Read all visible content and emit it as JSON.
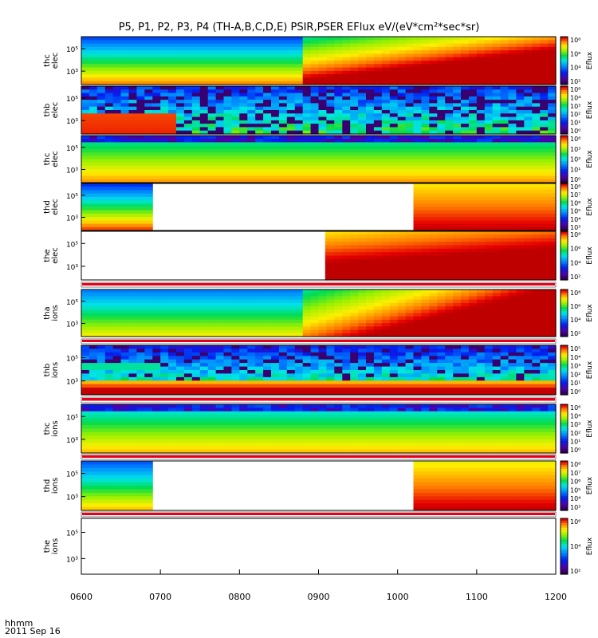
{
  "chart_data": {
    "type": "heatmap",
    "title": "P5, P1, P2, P3, P4 (TH-A,B,C,D,E) PSIR,PSER EFlux eV/(eV*cm²*sec*sr)",
    "x_axis": {
      "ticks": [
        "0600",
        "0700",
        "0800",
        "0900",
        "1000",
        "1100",
        "1200"
      ],
      "range": [
        "0600",
        "1200"
      ]
    },
    "footer": {
      "label": "hhmm",
      "date": "2011 Sep 16"
    },
    "colorbar_label": "Eflux",
    "panels": [
      {
        "ylabel": [
          "thc",
          "elec"
        ],
        "yticks": [
          "10⁵",
          "10³"
        ],
        "cbar": [
          "10⁸",
          "10⁶",
          "10⁴",
          "10²"
        ],
        "kind": "full_jump",
        "jump": "0851"
      },
      {
        "ylabel": [
          "thb",
          "elec"
        ],
        "yticks": [
          "10⁵",
          "10³"
        ],
        "cbar": [
          "10⁸",
          "10⁴",
          "10³",
          "10²",
          "10¹",
          "10⁰"
        ],
        "kind": "noisy",
        "red_until": "0710"
      },
      {
        "ylabel": [
          "thc",
          "elec"
        ],
        "yticks": [
          "10⁵",
          "10³"
        ],
        "cbar": [
          "10⁸",
          "10³",
          "10²",
          "10¹",
          "10⁰"
        ],
        "kind": "stripes"
      },
      {
        "ylabel": [
          "thd",
          "elec"
        ],
        "yticks": [
          "10⁵",
          "10³"
        ],
        "cbar": [
          "10⁸",
          "10⁷",
          "10⁶",
          "10⁵",
          "10⁴",
          "10³"
        ],
        "kind": "gap",
        "gap": [
          "0650",
          "1016"
        ]
      },
      {
        "ylabel": [
          "the",
          "elec"
        ],
        "yticks": [
          "10⁵",
          "10³"
        ],
        "cbar": [
          "10⁸",
          "10⁶",
          "10⁴",
          "10²"
        ],
        "kind": "late",
        "start": "0905"
      },
      {
        "ylabel": [
          "tha",
          "ions"
        ],
        "yticks": [
          "10⁵",
          "10³"
        ],
        "cbar": [
          "10⁸",
          "10⁶",
          "10⁴",
          "10²"
        ],
        "kind": "full_jump_ions",
        "jump": "0851"
      },
      {
        "ylabel": [
          "thb",
          "ions"
        ],
        "yticks": [
          "10⁵",
          "10³"
        ],
        "cbar": [
          "10⁵",
          "10⁴",
          "10³",
          "10²",
          "10¹",
          "10⁰"
        ],
        "kind": "noisy_ions",
        "cyan_until": "0700"
      },
      {
        "ylabel": [
          "thc",
          "ions"
        ],
        "yticks": [
          "10⁵",
          "10³"
        ],
        "cbar": [
          "10⁶",
          "10⁴",
          "10³",
          "10²",
          "10¹",
          "10⁰"
        ],
        "kind": "stripes_ions"
      },
      {
        "ylabel": [
          "thd",
          "ions"
        ],
        "yticks": [
          "10⁵",
          "10³"
        ],
        "cbar": [
          "10⁸",
          "10⁷",
          "10⁶",
          "10⁵",
          "10⁴",
          "10³"
        ],
        "kind": "gap_ions",
        "gap": [
          "0650",
          "1016"
        ]
      },
      {
        "ylabel": [
          "the",
          "ions"
        ],
        "yticks": [
          "10⁵",
          "10³"
        ],
        "cbar": [
          "10⁶",
          "10⁴",
          "10²"
        ],
        "kind": "empty"
      }
    ]
  }
}
